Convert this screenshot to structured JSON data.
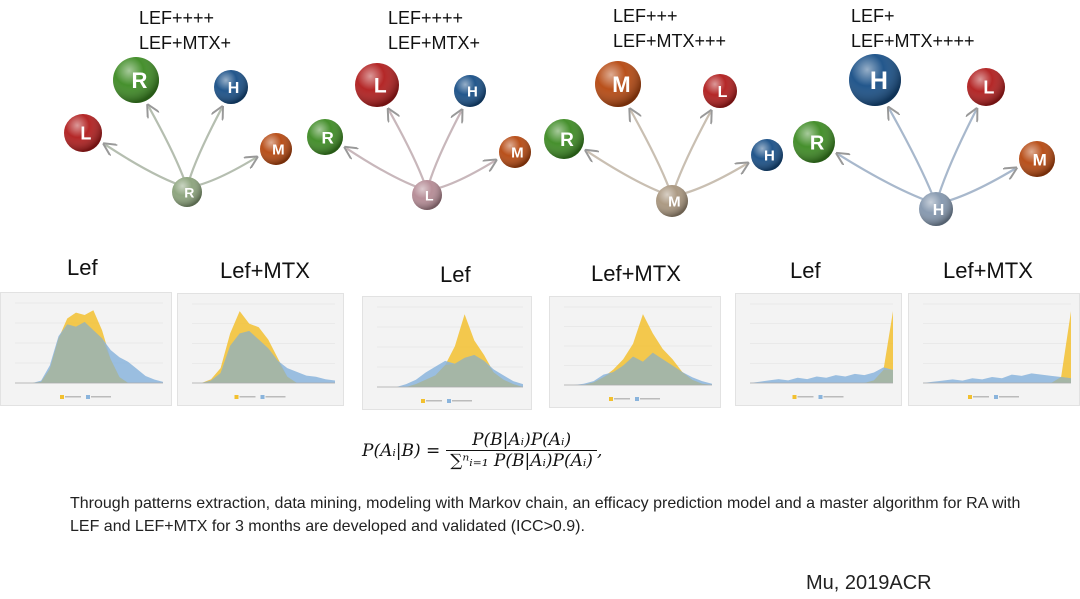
{
  "groups": [
    {
      "line1": "LEF++++",
      "line2": "LEF+MTX+",
      "center": {
        "letter": "R",
        "color": "#8aa27a"
      },
      "targets": [
        {
          "letter": "L",
          "color": "#b01c1c"
        },
        {
          "letter": "R",
          "color": "#3c8a22"
        },
        {
          "letter": "H",
          "color": "#174e86"
        },
        {
          "letter": "M",
          "color": "#b5470f"
        }
      ]
    },
    {
      "line1": "LEF++++",
      "line2": "LEF+MTX+",
      "center": {
        "letter": "L",
        "color": "#b48a94"
      },
      "targets": [
        {
          "letter": "R",
          "color": "#3c8a22"
        },
        {
          "letter": "L",
          "color": "#b01c1c"
        },
        {
          "letter": "H",
          "color": "#174e86"
        },
        {
          "letter": "M",
          "color": "#b5470f"
        }
      ]
    },
    {
      "line1": "LEF+++",
      "line2": "LEF+MTX+++",
      "center": {
        "letter": "M",
        "color": "#a8957d"
      },
      "targets": [
        {
          "letter": "R",
          "color": "#3c8a22"
        },
        {
          "letter": "M",
          "color": "#b5470f"
        },
        {
          "letter": "L",
          "color": "#b01c1c"
        },
        {
          "letter": "H",
          "color": "#174e86"
        }
      ]
    },
    {
      "line1": "LEF+",
      "line2": "LEF+MTX++++",
      "center": {
        "letter": "H",
        "color": "#8396ad"
      },
      "targets": [
        {
          "letter": "R",
          "color": "#3c8a22"
        },
        {
          "letter": "H",
          "color": "#174e86"
        },
        {
          "letter": "L",
          "color": "#b01c1c"
        },
        {
          "letter": "M",
          "color": "#b5470f"
        }
      ]
    }
  ],
  "panels": [
    {
      "label": "Lef"
    },
    {
      "label": "Lef+MTX"
    },
    {
      "label": "Lef"
    },
    {
      "label": "Lef+MTX"
    },
    {
      "label": "Lef"
    },
    {
      "label": "Lef+MTX"
    }
  ],
  "chart_colors": {
    "yellow": "#f2c02f",
    "blue": "#8ab4dc",
    "overlap": "#a8b59e"
  },
  "chart_data": [
    {
      "type": "area",
      "blue": [
        0,
        0,
        0,
        2,
        15,
        40,
        50,
        48,
        52,
        45,
        38,
        28,
        22,
        18,
        12,
        6,
        3,
        1
      ],
      "yellow": [
        0,
        0,
        0,
        1,
        12,
        38,
        55,
        60,
        58,
        62,
        45,
        20,
        5,
        0,
        0,
        0,
        0,
        0
      ]
    },
    {
      "type": "area",
      "blue": [
        0,
        0,
        2,
        8,
        30,
        40,
        42,
        35,
        28,
        18,
        12,
        9,
        6,
        5,
        3,
        2
      ],
      "yellow": [
        0,
        0,
        3,
        12,
        40,
        58,
        48,
        45,
        35,
        20,
        5,
        0,
        0,
        0,
        0,
        0
      ]
    },
    {
      "type": "area",
      "blue": [
        0,
        0,
        0,
        2,
        5,
        10,
        14,
        18,
        16,
        20,
        22,
        18,
        12,
        8,
        4,
        2
      ],
      "yellow": [
        0,
        0,
        0,
        0,
        2,
        5,
        8,
        15,
        28,
        50,
        32,
        22,
        10,
        5,
        2,
        0
      ]
    },
    {
      "type": "area",
      "blue": [
        0,
        0,
        1,
        3,
        8,
        10,
        15,
        22,
        18,
        25,
        20,
        15,
        10,
        6,
        3,
        1
      ],
      "yellow": [
        0,
        0,
        0,
        2,
        6,
        12,
        20,
        32,
        55,
        40,
        28,
        20,
        10,
        4,
        1,
        0
      ]
    },
    {
      "type": "area",
      "blue": [
        0,
        1,
        2,
        3,
        2,
        4,
        3,
        5,
        4,
        6,
        5,
        7,
        6,
        8,
        12,
        10
      ],
      "yellow": [
        0,
        0,
        0,
        0,
        0,
        0,
        0,
        0,
        0,
        0,
        0,
        0,
        0,
        2,
        10,
        55
      ]
    },
    {
      "type": "area",
      "blue": [
        0,
        1,
        2,
        3,
        2,
        4,
        3,
        5,
        4,
        7,
        6,
        8,
        7,
        6,
        5,
        4
      ],
      "yellow": [
        0,
        0,
        0,
        0,
        0,
        0,
        0,
        0,
        0,
        0,
        0,
        0,
        0,
        0,
        5,
        60
      ]
    }
  ],
  "formula": {
    "lhs": "P(Aᵢ|B) =",
    "numerator": "P(B|Aᵢ)P(Aᵢ)",
    "denominator": "∑ⁿᵢ₌₁ P(B|Aᵢ)P(Aᵢ)",
    "trail": ","
  },
  "caption": "Through patterns extraction, data mining, modeling with Markov chain, an efficacy prediction model and a master algorithm for RA with LEF and LEF+MTX for 3 months are developed and validated (ICC>0.9).",
  "credit": "Mu, 2019ACR"
}
